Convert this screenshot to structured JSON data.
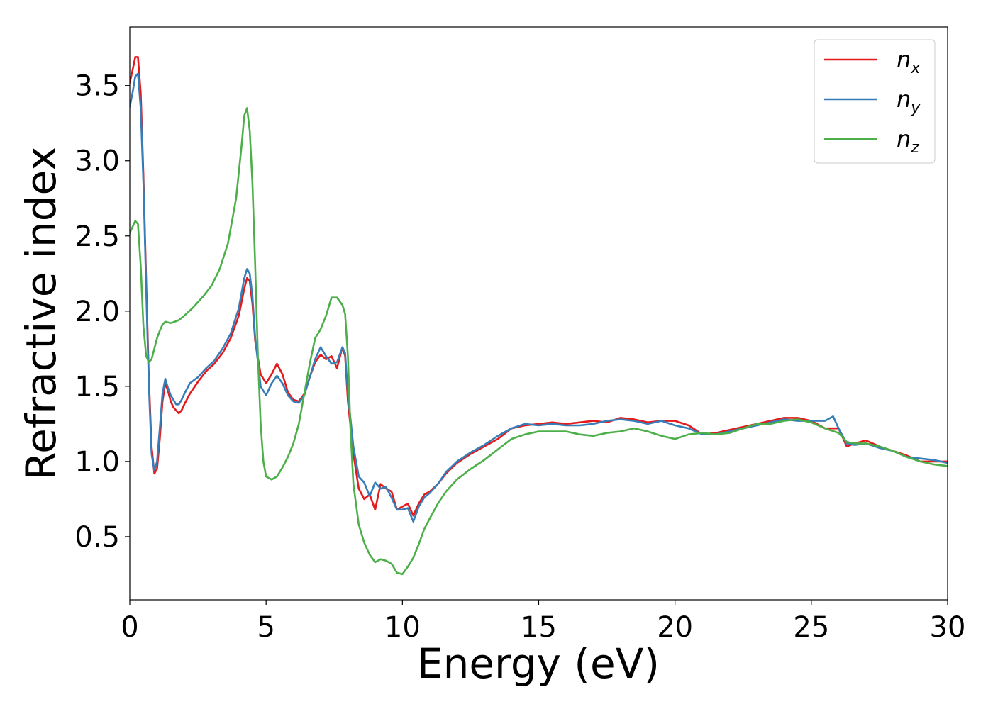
{
  "chart_data": {
    "type": "line",
    "title": "",
    "xlabel": "Energy (eV)",
    "ylabel": "Refractive index",
    "xlim": [
      0,
      30
    ],
    "ylim": [
      0.08,
      3.89
    ],
    "xticks": [
      0,
      5,
      10,
      15,
      20,
      25,
      30
    ],
    "xtick_labels": [
      "0",
      "5",
      "10",
      "15",
      "20",
      "25",
      "30"
    ],
    "yticks": [
      0.5,
      1.0,
      1.5,
      2.0,
      2.5,
      3.0,
      3.5
    ],
    "ytick_labels": [
      "0.5",
      "1.0",
      "1.5",
      "2.0",
      "2.5",
      "3.0",
      "3.5"
    ],
    "grid": false,
    "legend_position": "top-right",
    "series": [
      {
        "name": "n",
        "subscript": "x",
        "color": "#e41a1c",
        "points": [
          [
            0,
            3.52
          ],
          [
            0.1,
            3.6
          ],
          [
            0.2,
            3.69
          ],
          [
            0.3,
            3.69
          ],
          [
            0.4,
            3.45
          ],
          [
            0.5,
            2.9
          ],
          [
            0.6,
            2.2
          ],
          [
            0.7,
            1.55
          ],
          [
            0.8,
            1.1
          ],
          [
            0.9,
            0.92
          ],
          [
            1.0,
            0.95
          ],
          [
            1.1,
            1.15
          ],
          [
            1.2,
            1.4
          ],
          [
            1.3,
            1.52
          ],
          [
            1.4,
            1.47
          ],
          [
            1.5,
            1.4
          ],
          [
            1.6,
            1.36
          ],
          [
            1.7,
            1.34
          ],
          [
            1.8,
            1.32
          ],
          [
            1.9,
            1.34
          ],
          [
            2.0,
            1.38
          ],
          [
            2.2,
            1.45
          ],
          [
            2.5,
            1.53
          ],
          [
            2.8,
            1.6
          ],
          [
            3.1,
            1.65
          ],
          [
            3.4,
            1.72
          ],
          [
            3.7,
            1.82
          ],
          [
            4.0,
            1.97
          ],
          [
            4.2,
            2.15
          ],
          [
            4.3,
            2.22
          ],
          [
            4.4,
            2.2
          ],
          [
            4.5,
            2.05
          ],
          [
            4.6,
            1.8
          ],
          [
            4.8,
            1.58
          ],
          [
            5.0,
            1.52
          ],
          [
            5.2,
            1.58
          ],
          [
            5.4,
            1.65
          ],
          [
            5.6,
            1.58
          ],
          [
            5.8,
            1.46
          ],
          [
            6.0,
            1.41
          ],
          [
            6.2,
            1.4
          ],
          [
            6.4,
            1.45
          ],
          [
            6.6,
            1.56
          ],
          [
            6.8,
            1.66
          ],
          [
            7.0,
            1.71
          ],
          [
            7.2,
            1.68
          ],
          [
            7.4,
            1.7
          ],
          [
            7.6,
            1.62
          ],
          [
            7.8,
            1.76
          ],
          [
            7.9,
            1.7
          ],
          [
            8.0,
            1.4
          ],
          [
            8.2,
            1.05
          ],
          [
            8.4,
            0.82
          ],
          [
            8.6,
            0.75
          ],
          [
            8.8,
            0.78
          ],
          [
            9.0,
            0.68
          ],
          [
            9.2,
            0.85
          ],
          [
            9.4,
            0.82
          ],
          [
            9.6,
            0.8
          ],
          [
            9.8,
            0.68
          ],
          [
            10.0,
            0.7
          ],
          [
            10.2,
            0.72
          ],
          [
            10.4,
            0.64
          ],
          [
            10.6,
            0.72
          ],
          [
            10.8,
            0.78
          ],
          [
            11.0,
            0.8
          ],
          [
            11.3,
            0.85
          ],
          [
            11.6,
            0.92
          ],
          [
            12.0,
            0.99
          ],
          [
            12.5,
            1.05
          ],
          [
            13.0,
            1.1
          ],
          [
            13.5,
            1.15
          ],
          [
            14.0,
            1.22
          ],
          [
            14.5,
            1.24
          ],
          [
            15.0,
            1.25
          ],
          [
            15.5,
            1.26
          ],
          [
            16.0,
            1.25
          ],
          [
            16.5,
            1.26
          ],
          [
            17.0,
            1.27
          ],
          [
            17.5,
            1.26
          ],
          [
            18.0,
            1.29
          ],
          [
            18.5,
            1.28
          ],
          [
            19.0,
            1.26
          ],
          [
            19.5,
            1.27
          ],
          [
            20.0,
            1.27
          ],
          [
            20.5,
            1.24
          ],
          [
            21.0,
            1.18
          ],
          [
            21.5,
            1.19
          ],
          [
            22.0,
            1.21
          ],
          [
            22.5,
            1.23
          ],
          [
            23.0,
            1.25
          ],
          [
            23.5,
            1.27
          ],
          [
            24.0,
            1.29
          ],
          [
            24.5,
            1.29
          ],
          [
            25.0,
            1.27
          ],
          [
            25.5,
            1.22
          ],
          [
            26.0,
            1.22
          ],
          [
            26.3,
            1.1
          ],
          [
            26.6,
            1.12
          ],
          [
            27.0,
            1.14
          ],
          [
            27.5,
            1.1
          ],
          [
            28.0,
            1.07
          ],
          [
            28.5,
            1.04
          ],
          [
            29.0,
            1.0
          ],
          [
            29.5,
            1.0
          ],
          [
            30.0,
            1.0
          ]
        ]
      },
      {
        "name": "n",
        "subscript": "y",
        "color": "#377eb8",
        "points": [
          [
            0,
            3.36
          ],
          [
            0.1,
            3.45
          ],
          [
            0.2,
            3.56
          ],
          [
            0.3,
            3.58
          ],
          [
            0.4,
            3.35
          ],
          [
            0.5,
            2.85
          ],
          [
            0.6,
            2.15
          ],
          [
            0.7,
            1.5
          ],
          [
            0.8,
            1.05
          ],
          [
            0.9,
            0.94
          ],
          [
            1.0,
            1.0
          ],
          [
            1.1,
            1.22
          ],
          [
            1.2,
            1.45
          ],
          [
            1.3,
            1.55
          ],
          [
            1.4,
            1.49
          ],
          [
            1.5,
            1.44
          ],
          [
            1.6,
            1.41
          ],
          [
            1.7,
            1.38
          ],
          [
            1.8,
            1.38
          ],
          [
            1.9,
            1.41
          ],
          [
            2.0,
            1.45
          ],
          [
            2.2,
            1.52
          ],
          [
            2.5,
            1.56
          ],
          [
            2.8,
            1.62
          ],
          [
            3.1,
            1.67
          ],
          [
            3.4,
            1.75
          ],
          [
            3.7,
            1.85
          ],
          [
            4.0,
            2.02
          ],
          [
            4.2,
            2.22
          ],
          [
            4.3,
            2.28
          ],
          [
            4.4,
            2.25
          ],
          [
            4.5,
            2.1
          ],
          [
            4.6,
            1.82
          ],
          [
            4.8,
            1.5
          ],
          [
            5.0,
            1.44
          ],
          [
            5.2,
            1.52
          ],
          [
            5.4,
            1.57
          ],
          [
            5.6,
            1.52
          ],
          [
            5.8,
            1.44
          ],
          [
            6.0,
            1.4
          ],
          [
            6.2,
            1.39
          ],
          [
            6.4,
            1.44
          ],
          [
            6.6,
            1.56
          ],
          [
            6.8,
            1.68
          ],
          [
            7.0,
            1.76
          ],
          [
            7.2,
            1.7
          ],
          [
            7.4,
            1.65
          ],
          [
            7.6,
            1.66
          ],
          [
            7.8,
            1.76
          ],
          [
            7.9,
            1.72
          ],
          [
            8.0,
            1.45
          ],
          [
            8.2,
            1.1
          ],
          [
            8.4,
            0.9
          ],
          [
            8.6,
            0.86
          ],
          [
            8.8,
            0.77
          ],
          [
            9.0,
            0.86
          ],
          [
            9.2,
            0.82
          ],
          [
            9.4,
            0.83
          ],
          [
            9.6,
            0.76
          ],
          [
            9.8,
            0.68
          ],
          [
            10.0,
            0.68
          ],
          [
            10.2,
            0.69
          ],
          [
            10.4,
            0.6
          ],
          [
            10.6,
            0.7
          ],
          [
            10.8,
            0.76
          ],
          [
            11.0,
            0.79
          ],
          [
            11.3,
            0.85
          ],
          [
            11.6,
            0.93
          ],
          [
            12.0,
            1.0
          ],
          [
            12.5,
            1.06
          ],
          [
            13.0,
            1.11
          ],
          [
            13.5,
            1.17
          ],
          [
            14.0,
            1.22
          ],
          [
            14.5,
            1.25
          ],
          [
            15.0,
            1.24
          ],
          [
            15.5,
            1.25
          ],
          [
            16.0,
            1.24
          ],
          [
            16.5,
            1.24
          ],
          [
            17.0,
            1.25
          ],
          [
            17.5,
            1.27
          ],
          [
            18.0,
            1.28
          ],
          [
            18.5,
            1.27
          ],
          [
            19.0,
            1.25
          ],
          [
            19.5,
            1.27
          ],
          [
            20.0,
            1.24
          ],
          [
            20.5,
            1.22
          ],
          [
            21.0,
            1.18
          ],
          [
            21.5,
            1.18
          ],
          [
            22.0,
            1.2
          ],
          [
            22.5,
            1.22
          ],
          [
            23.0,
            1.24
          ],
          [
            23.5,
            1.26
          ],
          [
            24.0,
            1.28
          ],
          [
            24.5,
            1.27
          ],
          [
            25.0,
            1.27
          ],
          [
            25.5,
            1.27
          ],
          [
            25.8,
            1.3
          ],
          [
            26.0,
            1.22
          ],
          [
            26.3,
            1.12
          ],
          [
            26.6,
            1.11
          ],
          [
            27.0,
            1.12
          ],
          [
            27.5,
            1.09
          ],
          [
            28.0,
            1.07
          ],
          [
            28.5,
            1.03
          ],
          [
            29.0,
            1.02
          ],
          [
            29.5,
            1.01
          ],
          [
            30.0,
            0.99
          ]
        ]
      },
      {
        "name": "n",
        "subscript": "z",
        "color": "#4daf4a",
        "points": [
          [
            0,
            2.52
          ],
          [
            0.1,
            2.56
          ],
          [
            0.2,
            2.6
          ],
          [
            0.3,
            2.58
          ],
          [
            0.4,
            2.3
          ],
          [
            0.5,
            1.9
          ],
          [
            0.6,
            1.7
          ],
          [
            0.7,
            1.66
          ],
          [
            0.8,
            1.68
          ],
          [
            0.9,
            1.75
          ],
          [
            1.0,
            1.82
          ],
          [
            1.1,
            1.87
          ],
          [
            1.2,
            1.91
          ],
          [
            1.3,
            1.93
          ],
          [
            1.5,
            1.92
          ],
          [
            1.8,
            1.94
          ],
          [
            2.0,
            1.97
          ],
          [
            2.3,
            2.02
          ],
          [
            2.7,
            2.1
          ],
          [
            3.0,
            2.17
          ],
          [
            3.3,
            2.28
          ],
          [
            3.6,
            2.45
          ],
          [
            3.9,
            2.75
          ],
          [
            4.1,
            3.1
          ],
          [
            4.2,
            3.3
          ],
          [
            4.3,
            3.35
          ],
          [
            4.4,
            3.2
          ],
          [
            4.5,
            2.85
          ],
          [
            4.6,
            2.3
          ],
          [
            4.7,
            1.7
          ],
          [
            4.8,
            1.25
          ],
          [
            4.9,
            1.0
          ],
          [
            5.0,
            0.9
          ],
          [
            5.2,
            0.88
          ],
          [
            5.4,
            0.9
          ],
          [
            5.6,
            0.96
          ],
          [
            5.8,
            1.03
          ],
          [
            6.0,
            1.12
          ],
          [
            6.2,
            1.25
          ],
          [
            6.4,
            1.45
          ],
          [
            6.6,
            1.65
          ],
          [
            6.8,
            1.82
          ],
          [
            7.0,
            1.88
          ],
          [
            7.2,
            1.97
          ],
          [
            7.4,
            2.09
          ],
          [
            7.6,
            2.09
          ],
          [
            7.8,
            2.04
          ],
          [
            7.9,
            1.98
          ],
          [
            8.0,
            1.7
          ],
          [
            8.1,
            1.2
          ],
          [
            8.2,
            0.85
          ],
          [
            8.4,
            0.58
          ],
          [
            8.6,
            0.46
          ],
          [
            8.8,
            0.38
          ],
          [
            9.0,
            0.33
          ],
          [
            9.2,
            0.35
          ],
          [
            9.4,
            0.34
          ],
          [
            9.6,
            0.32
          ],
          [
            9.8,
            0.26
          ],
          [
            10.0,
            0.25
          ],
          [
            10.2,
            0.3
          ],
          [
            10.4,
            0.36
          ],
          [
            10.6,
            0.45
          ],
          [
            10.8,
            0.55
          ],
          [
            11.0,
            0.62
          ],
          [
            11.3,
            0.72
          ],
          [
            11.6,
            0.8
          ],
          [
            12.0,
            0.88
          ],
          [
            12.5,
            0.95
          ],
          [
            13.0,
            1.01
          ],
          [
            13.5,
            1.08
          ],
          [
            14.0,
            1.15
          ],
          [
            14.5,
            1.18
          ],
          [
            15.0,
            1.2
          ],
          [
            15.5,
            1.2
          ],
          [
            16.0,
            1.2
          ],
          [
            16.5,
            1.18
          ],
          [
            17.0,
            1.17
          ],
          [
            17.5,
            1.19
          ],
          [
            18.0,
            1.2
          ],
          [
            18.5,
            1.22
          ],
          [
            19.0,
            1.2
          ],
          [
            19.5,
            1.17
          ],
          [
            20.0,
            1.15
          ],
          [
            20.5,
            1.18
          ],
          [
            21.0,
            1.19
          ],
          [
            21.5,
            1.18
          ],
          [
            22.0,
            1.19
          ],
          [
            22.5,
            1.22
          ],
          [
            23.0,
            1.25
          ],
          [
            23.5,
            1.25
          ],
          [
            24.0,
            1.27
          ],
          [
            24.5,
            1.28
          ],
          [
            25.0,
            1.26
          ],
          [
            25.5,
            1.22
          ],
          [
            26.0,
            1.19
          ],
          [
            26.3,
            1.13
          ],
          [
            26.6,
            1.12
          ],
          [
            27.0,
            1.12
          ],
          [
            27.5,
            1.1
          ],
          [
            28.0,
            1.07
          ],
          [
            28.5,
            1.03
          ],
          [
            29.0,
            1.0
          ],
          [
            29.5,
            0.98
          ],
          [
            30.0,
            0.97
          ]
        ]
      }
    ]
  }
}
